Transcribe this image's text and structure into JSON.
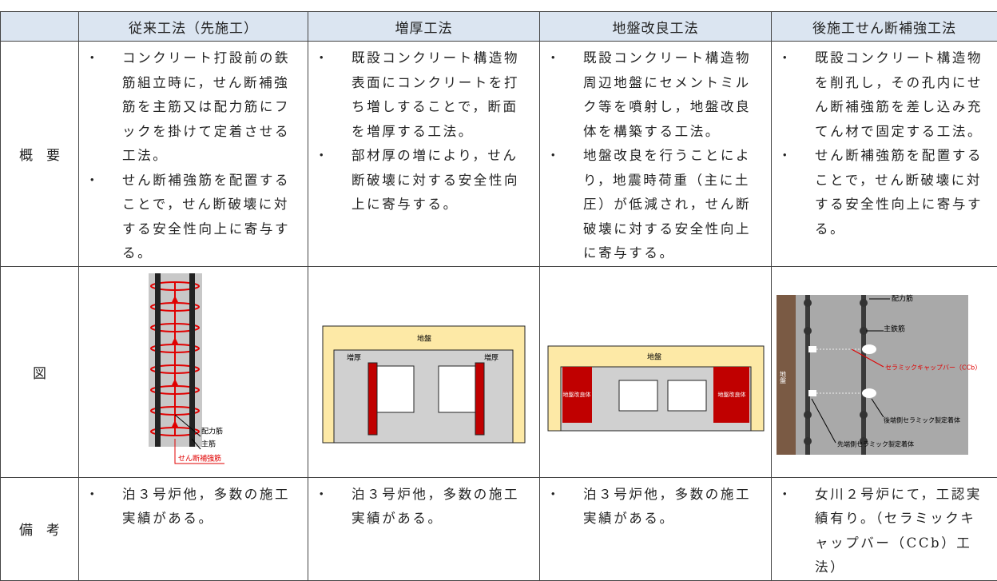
{
  "table": {
    "header": [
      "従来工法（先施工）",
      "増厚工法",
      "地盤改良工法",
      "後施工せん断補強工法"
    ],
    "overview": {
      "label": "概　要",
      "cells": [
        [
          "コンクリート打設前の鉄筋組立時に，せん断補強筋を主筋又は配力筋にフックを掛けて定着させる工法。",
          "せん断補強筋を配置することで，せん断破壊に対する安全性向上に寄与する。"
        ],
        [
          "既設コンクリート構造物表面にコンクリートを打ち増しすることで，断面を増厚する工法。",
          "部材厚の増により，せん断破壊に対する安全性向上に寄与する。"
        ],
        [
          "既設コンクリート構造物周辺地盤にセメントミルク等を噴射し，地盤改良体を構築する工法。",
          "地盤改良を行うことにより，地震時荷重（主に土圧）が低減され，せん断破壊に対する安全性向上に寄与する。"
        ],
        [
          "既設コンクリート構造物を削孔し，その孔内にせん断補強筋を差し込み充てん材で固定する工法。",
          "せん断補強筋を配置することで，せん断破壊に対する安全性向上に寄与する。"
        ]
      ]
    },
    "figure": {
      "label": "図",
      "diagrams": [
        {
          "labels": [
            "配力筋",
            "主筋",
            "せん断補強筋"
          ]
        },
        {
          "labels": [
            "地盤",
            "増厚",
            "増厚"
          ]
        },
        {
          "labels": [
            "地盤",
            "地盤改良体",
            "地盤改良体"
          ]
        },
        {
          "labels": [
            "配力筋",
            "主鉄筋",
            "セラミックキャップバー（CCb）",
            "後端側セラミック製定着体",
            "先端側セラミック製定着体",
            "地盤"
          ]
        }
      ]
    },
    "remarks": {
      "label": "備　考",
      "cells": [
        [
          "泊３号炉他，多数の施工実績がある。"
        ],
        [
          "泊３号炉他，多数の施工実績がある。"
        ],
        [
          "泊３号炉他，多数の施工実績がある。"
        ],
        [
          "女川２号炉にて，工認実績有り。（セラミックキャップバー（CCb）工法）"
        ]
      ]
    }
  }
}
